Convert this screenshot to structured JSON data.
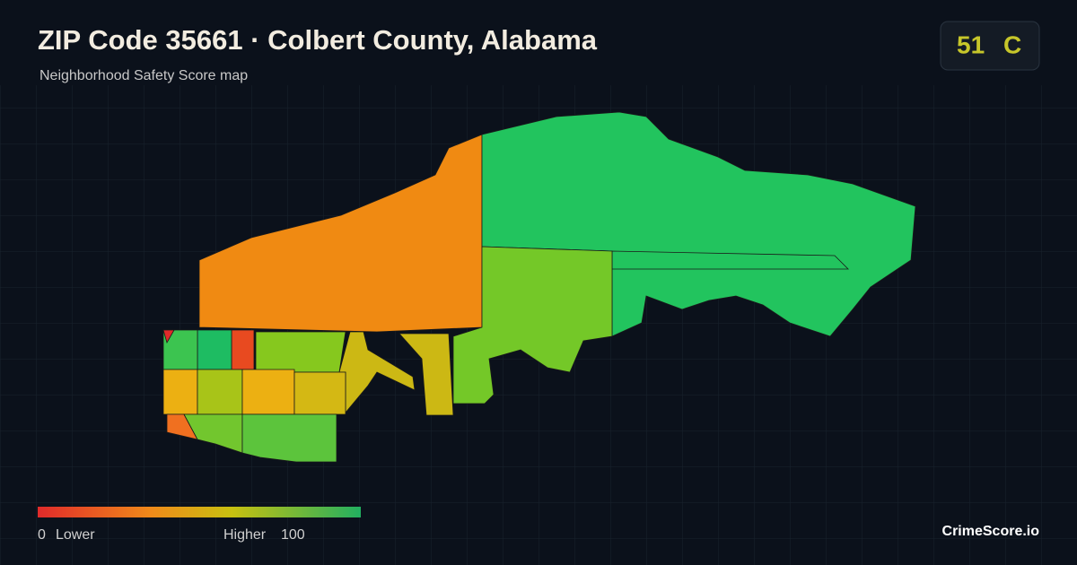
{
  "header": {
    "title": "ZIP Code 35661 · Colbert County, Alabama",
    "subtitle": "Neighborhood Safety Score map"
  },
  "badge": {
    "score": 51,
    "grade": "C"
  },
  "legend": {
    "min": 0,
    "min_label": "Lower",
    "max_label": "Higher",
    "max": 100
  },
  "footer": {
    "brand": "CrimeScore.io"
  }
}
